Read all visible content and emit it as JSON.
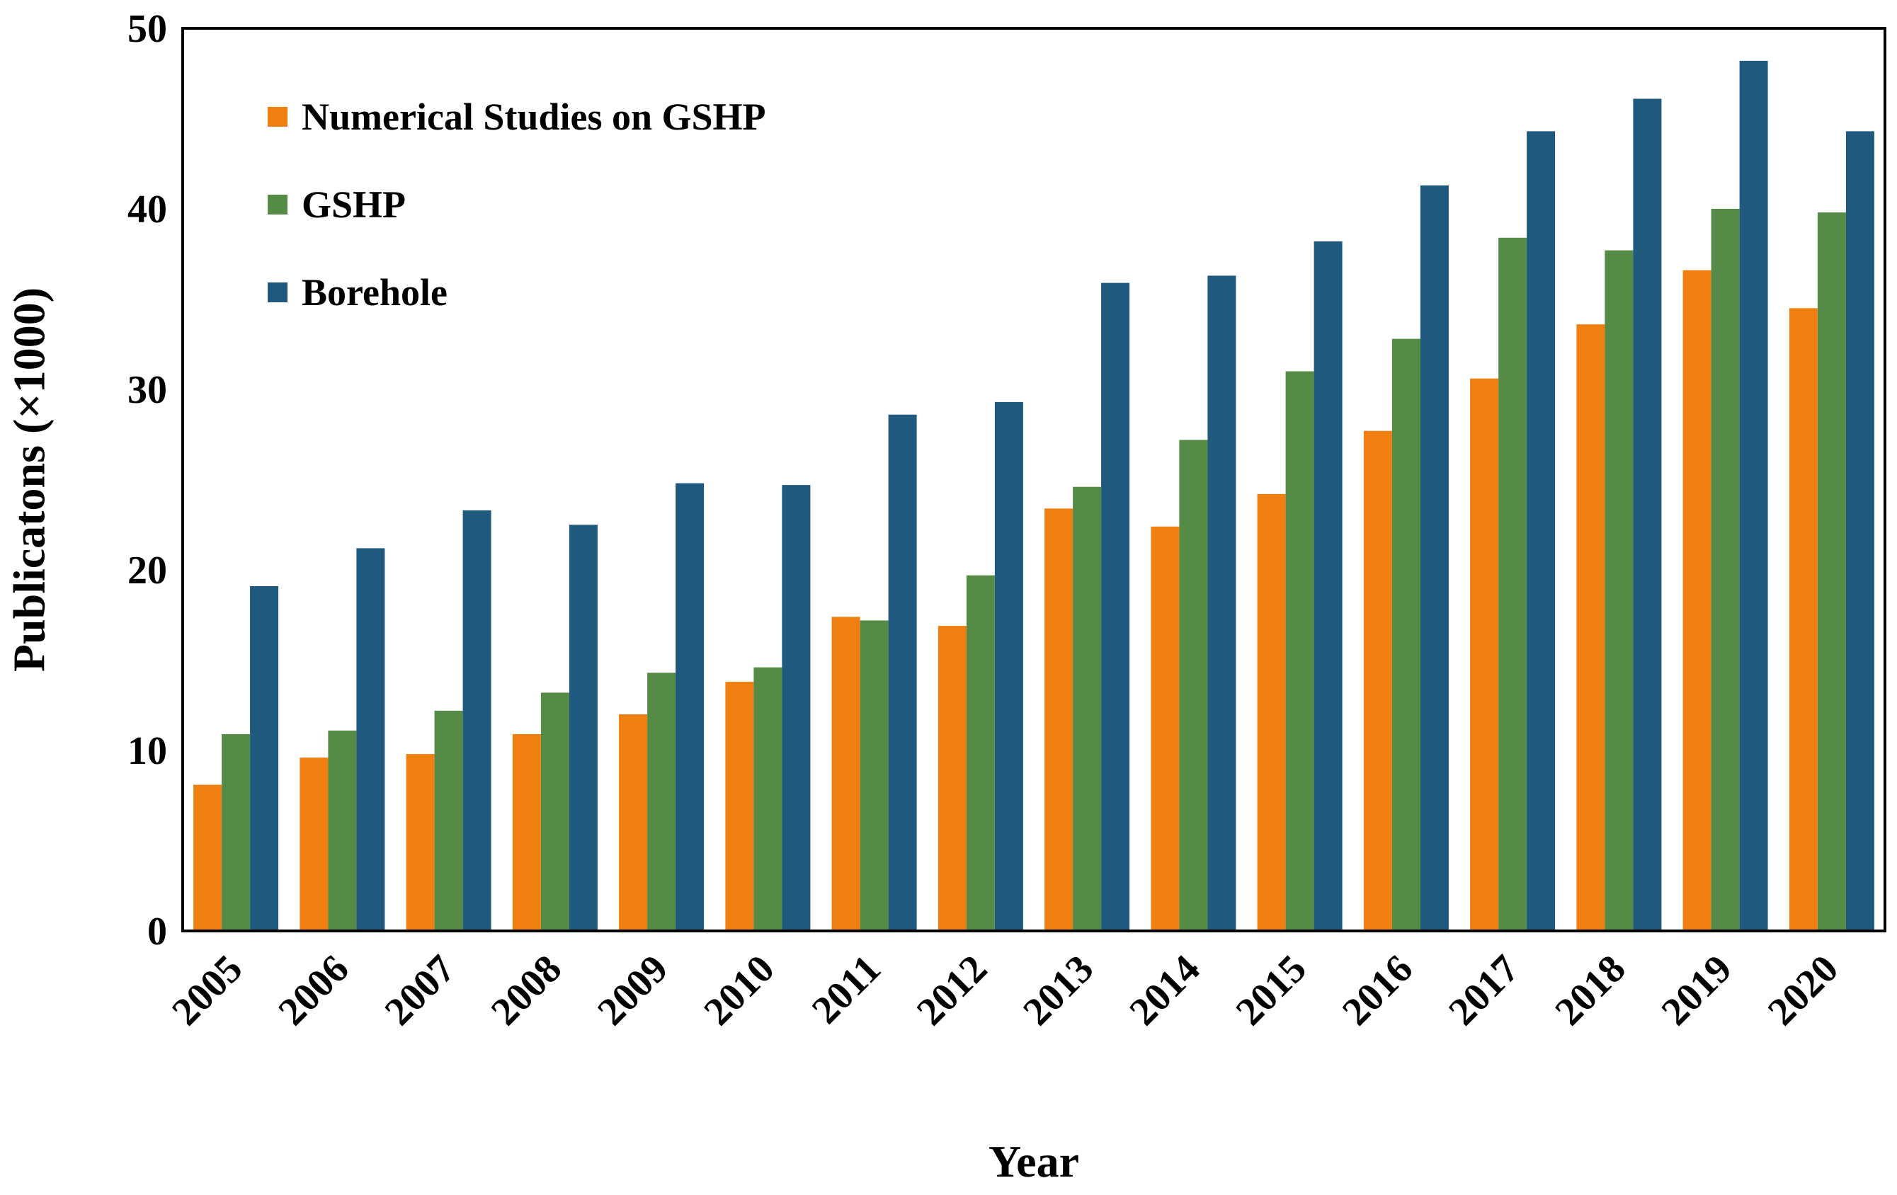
{
  "chart_data": {
    "type": "bar",
    "title": "",
    "xlabel": "Year",
    "ylabel": "Publicatons (×1000)",
    "ylim": [
      0,
      50
    ],
    "yticks": [
      0,
      10,
      20,
      30,
      40,
      50
    ],
    "grid": false,
    "legend_position": "top-left",
    "categories": [
      "2005",
      "2006",
      "2007",
      "2008",
      "2009",
      "2010",
      "2011",
      "2012",
      "2013",
      "2014",
      "2015",
      "2016",
      "2017",
      "2018",
      "2019",
      "2020"
    ],
    "series": [
      {
        "name": "Numerical Studies on GSHP",
        "color": "#F07F12",
        "values": [
          8.1,
          9.6,
          9.8,
          10.9,
          12.0,
          13.8,
          17.4,
          16.9,
          23.4,
          22.4,
          24.2,
          27.7,
          30.6,
          33.6,
          36.6,
          34.5
        ]
      },
      {
        "name": "GSHP",
        "color": "#558B46",
        "values": [
          10.9,
          11.1,
          12.2,
          13.2,
          14.3,
          14.6,
          17.2,
          19.7,
          24.6,
          27.2,
          31.0,
          32.8,
          38.4,
          37.7,
          40.0,
          39.8
        ]
      },
      {
        "name": "Borehole",
        "color": "#1F5A7E",
        "values": [
          19.1,
          21.2,
          23.3,
          22.5,
          24.8,
          24.7,
          28.6,
          29.3,
          35.9,
          36.3,
          38.2,
          41.3,
          44.3,
          46.1,
          48.2,
          44.3
        ]
      }
    ]
  }
}
